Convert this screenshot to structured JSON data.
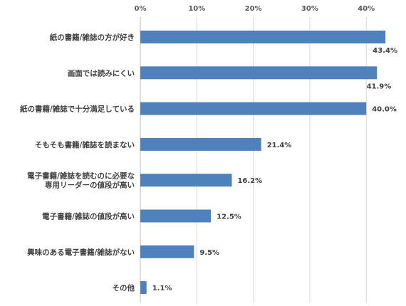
{
  "chart_data": {
    "type": "bar",
    "orientation": "horizontal",
    "title": "",
    "xlabel": "",
    "ylabel": "",
    "x_axis_position": "top",
    "xlim": [
      0,
      40
    ],
    "x_ticks": [
      0,
      10,
      20,
      30,
      40
    ],
    "tick_format": "%",
    "grid": true,
    "legend": "none",
    "bar_color": "#4f81bd",
    "categories": [
      [
        "紙の書籍/雑誌の方が好き"
      ],
      [
        "画面では読みにくい"
      ],
      [
        "紙の書籍/雑誌で十分満足している"
      ],
      [
        "そもそも書籍/雑誌を読まない"
      ],
      [
        "電子書籍/雑誌を読むのに必要な",
        "専用リーダーの値段が高い"
      ],
      [
        "電子書籍/雑誌の値段が高い"
      ],
      [
        "興味のある電子書籍/雑誌がない"
      ],
      [
        "その他"
      ]
    ],
    "values": [
      43.4,
      41.9,
      40.0,
      21.4,
      16.2,
      12.5,
      9.5,
      1.1
    ],
    "data_labels": [
      "43.4%",
      "41.9%",
      "40.0%",
      "21.4%",
      "16.2%",
      "12.5%",
      "9.5%",
      "1.1%"
    ]
  }
}
